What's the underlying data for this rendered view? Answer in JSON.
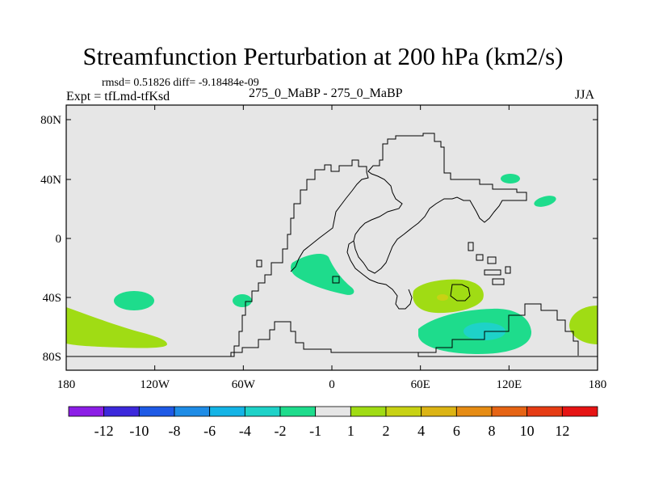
{
  "title": "Streamfunction Perturbation at 200 hPa (km2/s)",
  "stats_line": "rmsd= 0.51826 diff= -9.18484e-09",
  "experiment": "Expt = tfLmd-tfKsd",
  "comparison": "275_0_MaBP - 275_0_MaBP",
  "season": "JJA",
  "map": {
    "background_color": "#e6e6e6",
    "coastline_color": "#000000",
    "lat_tick_labels": [
      "80N",
      "40N",
      "0",
      "40S",
      "80S"
    ],
    "lon_tick_labels": [
      "180",
      "120W",
      "60W",
      "0",
      "60E",
      "120E",
      "180"
    ]
  },
  "colorbar": {
    "labels": [
      "-12",
      "-10",
      "-8",
      "-6",
      "-4",
      "-2",
      "-1",
      "1",
      "2",
      "4",
      "6",
      "8",
      "10",
      "12"
    ],
    "colors": [
      "#8c1ee6",
      "#3c28dc",
      "#1e5ae6",
      "#1e8ce6",
      "#14b4e6",
      "#1ed2c8",
      "#1edc8c",
      "#e6e6e6",
      "#a0dc14",
      "#c8d214",
      "#dcb414",
      "#e68c14",
      "#e66414",
      "#e63c14",
      "#e61414"
    ]
  },
  "contour_regions": [
    {
      "name": "south-pacific-positive-west",
      "level": "1 to 2"
    },
    {
      "name": "south-pacific-negative-small",
      "level": "-1 to -2"
    },
    {
      "name": "south-atlantic-negative-small",
      "level": "-1 to -2"
    },
    {
      "name": "tropical-atlantic-negative",
      "level": "-1 to -2"
    },
    {
      "name": "indian-ocean-positive",
      "level": "1 to 4"
    },
    {
      "name": "southern-ocean-negative",
      "level": "-1 to -4"
    },
    {
      "name": "south-pacific-positive-east",
      "level": "1 to 2"
    },
    {
      "name": "north-pacific-negative-a",
      "level": "-1 to -2"
    },
    {
      "name": "north-pacific-negative-b",
      "level": "-1 to -2"
    }
  ]
}
